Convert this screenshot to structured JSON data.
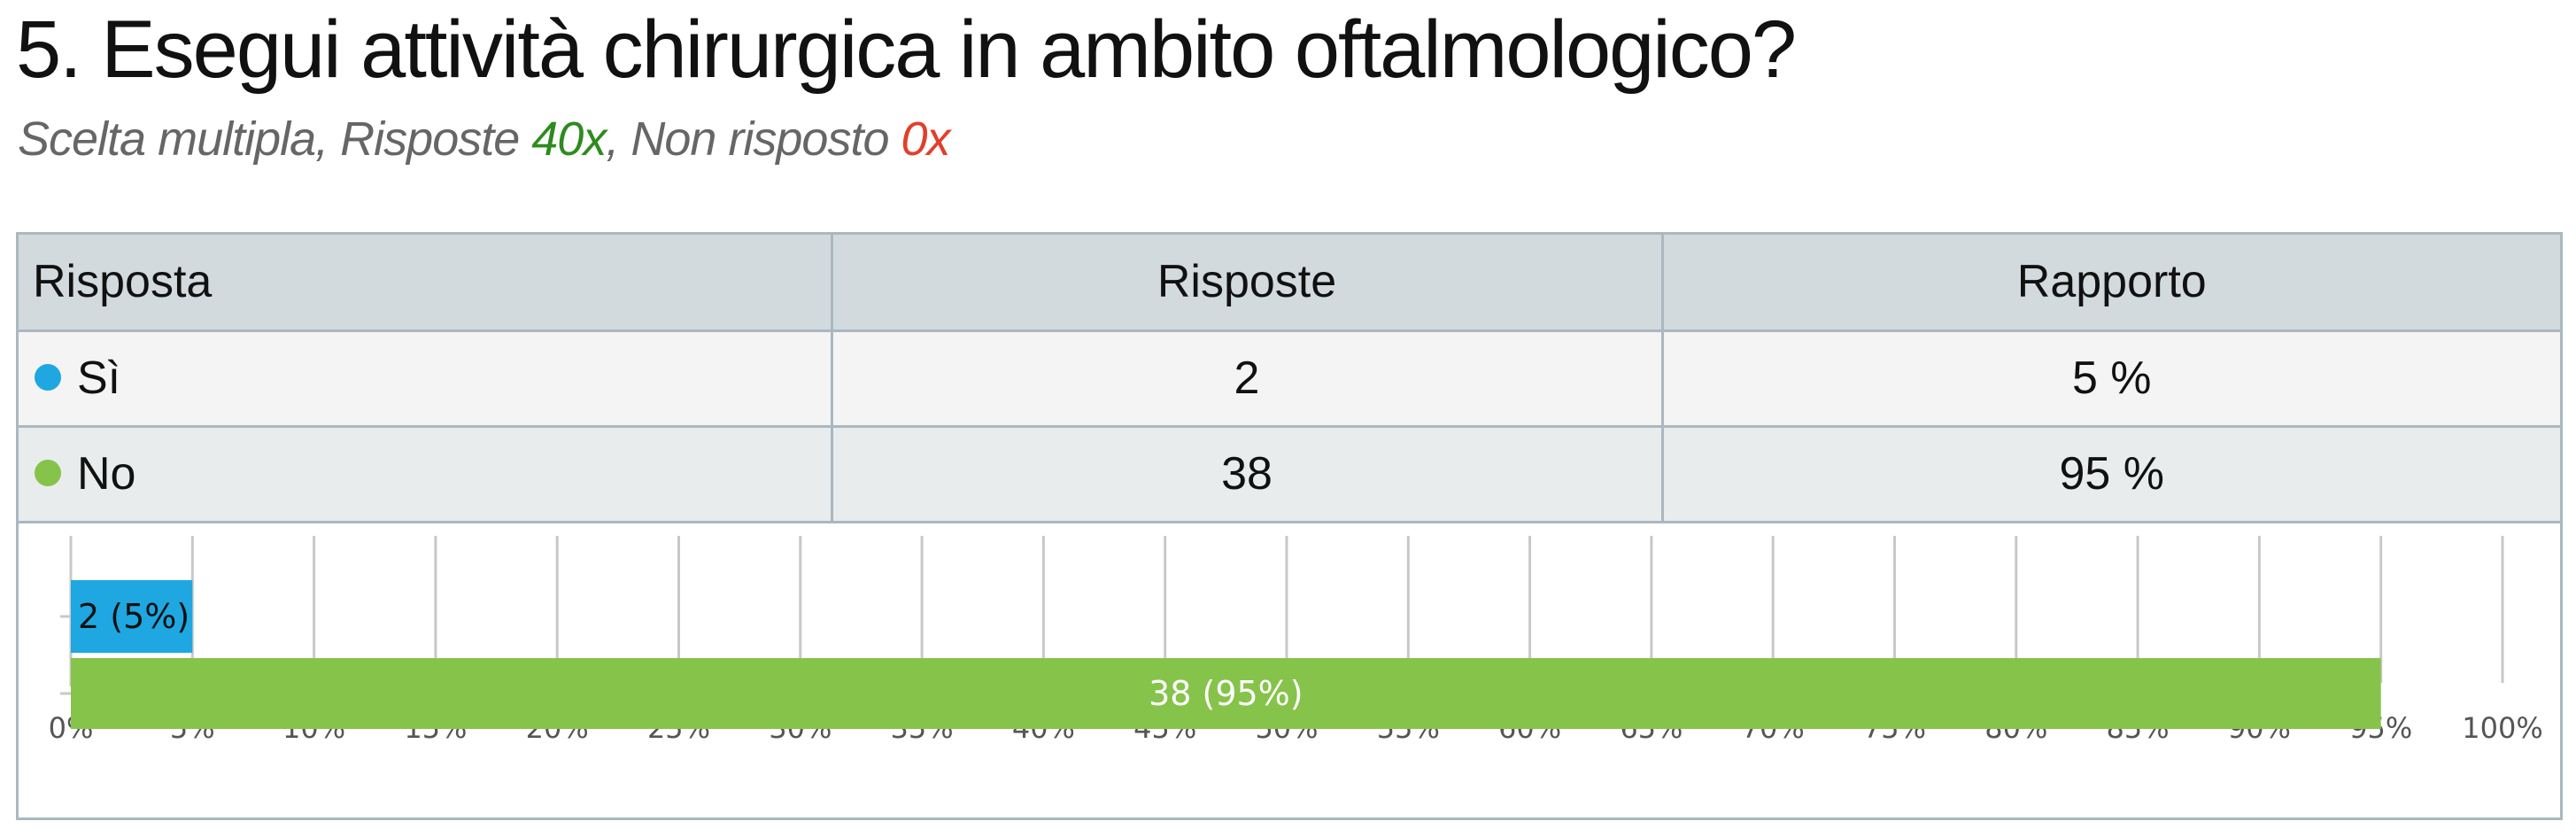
{
  "title": "5. Esegui attività chirurgica in ambito oftalmologico?",
  "subtitle": {
    "prefix": "Scelta multipla, Risposte ",
    "answered": "40x",
    "middle": ", Non risposto ",
    "unanswered": "0x"
  },
  "table": {
    "headers": [
      "Risposta",
      "Risposte",
      "Rapporto"
    ],
    "rows": [
      {
        "label": "Sì",
        "count": "2",
        "ratio": "5 %",
        "color": "#1ea7e1"
      },
      {
        "label": "No",
        "count": "38",
        "ratio": "95 %",
        "color": "#86c34a"
      }
    ]
  },
  "chart_data": {
    "type": "bar",
    "orientation": "horizontal",
    "categories": [
      "Sì",
      "No"
    ],
    "values": [
      5,
      95
    ],
    "counts": [
      2,
      38
    ],
    "data_labels": [
      "2 (5%)",
      "38 (95%)"
    ],
    "colors": [
      "#1ea7e1",
      "#86c34a"
    ],
    "xlim": [
      0,
      100
    ],
    "x_ticks": [
      "0%",
      "5%",
      "10%",
      "15%",
      "20%",
      "25%",
      "30%",
      "35%",
      "40%",
      "45%",
      "50%",
      "55%",
      "60%",
      "65%",
      "70%",
      "75%",
      "80%",
      "85%",
      "90%",
      "95%",
      "100%"
    ],
    "grid": true,
    "legend": "none"
  }
}
